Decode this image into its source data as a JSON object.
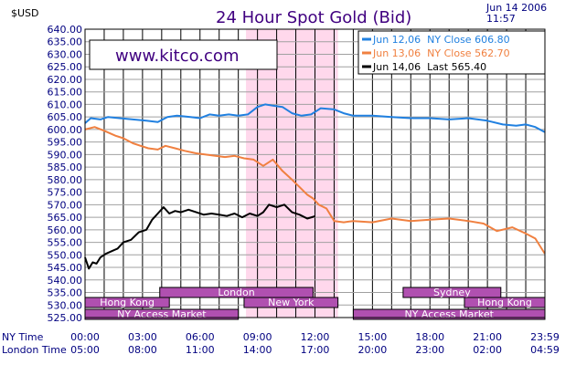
{
  "chart_data": {
    "type": "line",
    "title": "24 Hour Spot Gold (Bid)",
    "ylabel": "$USD",
    "date_line1": "Jun 14 2006",
    "date_line2": "11:57",
    "watermark": "www.kitco.com",
    "ylim": [
      525,
      640
    ],
    "ytick_step": 5,
    "xlim_hours": [
      0,
      24
    ],
    "grid": true,
    "x_ticks_ny": [
      "00:00",
      "03:00",
      "06:00",
      "09:00",
      "12:00",
      "15:00",
      "18:00",
      "21:00",
      "23:59"
    ],
    "x_ticks_london": [
      "05:00",
      "08:00",
      "11:00",
      "14:00",
      "17:00",
      "20:00",
      "23:00",
      "02:00",
      "04:59"
    ],
    "x_row_label_ny": "NY Time",
    "x_row_label_london": "London Time",
    "highlight_hours": [
      8.4,
      13.2
    ],
    "legend_position": "top-right",
    "colors": {
      "jun12": "#2080e0",
      "jun13": "#f08040",
      "jun14": "#000000",
      "highlight": "#ffd8ec",
      "session": "#b050b0",
      "title": "#400080",
      "axis_text": "#000080"
    },
    "series": [
      {
        "name": "Jun 12,06  NY Close 606.80",
        "color_key": "jun12",
        "x": [
          0,
          0.3,
          0.8,
          1.2,
          1.8,
          2.5,
          3.2,
          3.8,
          4.3,
          4.8,
          5.5,
          6.0,
          6.5,
          7.0,
          7.5,
          8.0,
          8.5,
          9.0,
          9.4,
          9.8,
          10.3,
          10.8,
          11.3,
          11.8,
          12.3,
          13.0,
          13.5,
          14.0,
          15.0,
          16.0,
          17.0,
          18.0,
          19.0,
          20.0,
          21.0,
          21.8,
          22.5,
          23.0,
          23.5,
          23.99
        ],
        "y": [
          602.5,
          604.5,
          604,
          605,
          604.5,
          604,
          603.5,
          603,
          605,
          605.5,
          605,
          604.5,
          606,
          605.5,
          606,
          605.5,
          606,
          609,
          610,
          609.5,
          609,
          606.5,
          605.5,
          606,
          608.5,
          608,
          606.5,
          605.5,
          605.5,
          605,
          604.5,
          604.5,
          604,
          604.5,
          603.5,
          602,
          601.5,
          602,
          601,
          599
        ]
      },
      {
        "name": "Jun 13,06  NY Close 562.70",
        "color_key": "jun13",
        "x": [
          0,
          0.5,
          1.0,
          1.6,
          2.0,
          2.5,
          2.9,
          3.3,
          3.8,
          4.2,
          4.7,
          5.2,
          5.8,
          6.3,
          6.8,
          7.3,
          7.8,
          8.3,
          8.8,
          9.3,
          9.8,
          10.3,
          10.8,
          11.2,
          11.6,
          11.9,
          12.2,
          12.6,
          13.0,
          13.5,
          14.0,
          15.0,
          16.0,
          17.0,
          18.0,
          19.0,
          20.0,
          20.8,
          21.5,
          22.3,
          23.0,
          23.5,
          23.99
        ],
        "y": [
          600,
          601,
          599.5,
          597.5,
          596.5,
          594.5,
          593.5,
          592.5,
          592,
          593.5,
          592.5,
          591.5,
          590.5,
          590,
          589.5,
          589,
          589.5,
          588.5,
          588,
          585.5,
          588,
          583.5,
          580,
          577,
          574,
          572.5,
          570,
          568.5,
          563.5,
          563,
          563.5,
          563,
          564.5,
          563.5,
          564,
          564.5,
          563.5,
          562.5,
          559.5,
          561,
          558.5,
          556.5,
          550.5
        ]
      },
      {
        "name": "Jun 14,06  Last 565.40",
        "color_key": "jun14",
        "x": [
          0,
          0.2,
          0.4,
          0.6,
          0.8,
          1.1,
          1.4,
          1.7,
          2.0,
          2.4,
          2.8,
          3.2,
          3.5,
          3.8,
          4.1,
          4.4,
          4.7,
          5.0,
          5.4,
          5.8,
          6.2,
          6.6,
          7.0,
          7.4,
          7.8,
          8.2,
          8.6,
          9.0,
          9.3,
          9.6,
          10.0,
          10.4,
          10.8,
          11.2,
          11.6,
          12.0
        ],
        "y": [
          549,
          544.5,
          547,
          546.5,
          549,
          550.5,
          551.5,
          552.5,
          555,
          556,
          559,
          560,
          564,
          566.5,
          569,
          566.5,
          567.5,
          567,
          568,
          567,
          566,
          566.5,
          566,
          565.5,
          566.5,
          565,
          566.5,
          565.5,
          567,
          570,
          569,
          570,
          567,
          566,
          564.5,
          565.4
        ]
      }
    ],
    "sessions": [
      {
        "label": "London",
        "start": 3.9,
        "end": 11.9,
        "row": 0
      },
      {
        "label": "Sydney",
        "start": 16.6,
        "end": 21.7,
        "row": 0
      },
      {
        "label": "Hong Kong",
        "start": 0,
        "end": 4.4,
        "row": 1
      },
      {
        "label": "New York",
        "start": 8.3,
        "end": 13.2,
        "row": 1
      },
      {
        "label": "Hong Kong",
        "start": 19.8,
        "end": 24,
        "row": 1
      },
      {
        "label": "NY Access Market",
        "start": 0,
        "end": 8.0,
        "row": 2
      },
      {
        "label": "NY Access Market",
        "start": 14.0,
        "end": 24,
        "row": 2
      }
    ]
  }
}
